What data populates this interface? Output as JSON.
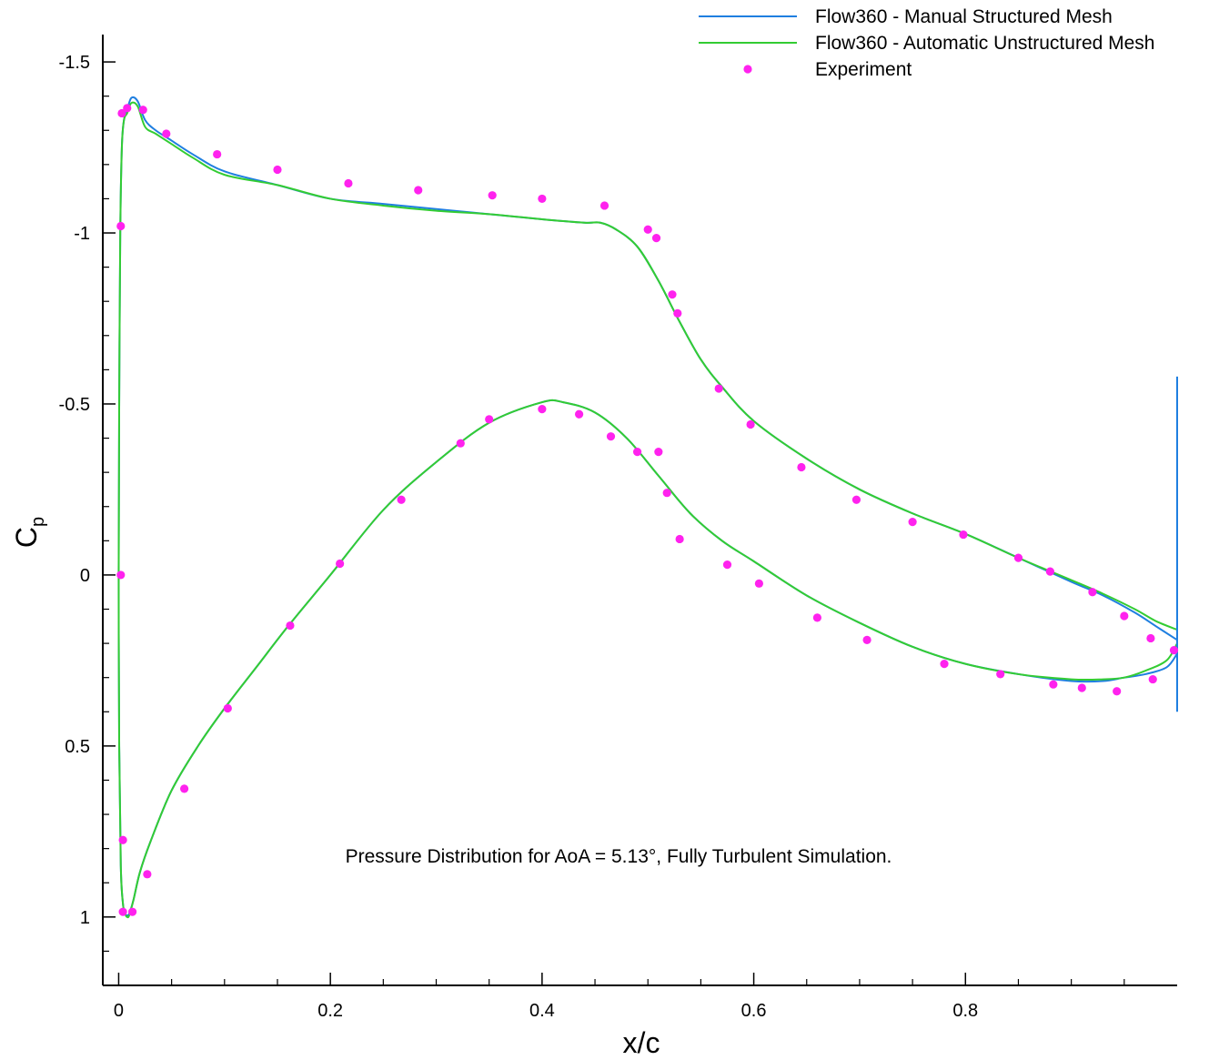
{
  "chart_data": {
    "type": "line",
    "xlabel": "x/c",
    "ylabel": "C",
    "ylabel_subscript": "p",
    "xlim": [
      -0.015,
      1.0
    ],
    "ylim": [
      -1.58,
      1.2
    ],
    "y_inverted": true,
    "grid": false,
    "legend_position": "top-right",
    "x_ticks": [
      {
        "value": 0,
        "label": "0"
      },
      {
        "value": 0.2,
        "label": "0.2"
      },
      {
        "value": 0.4,
        "label": "0.4"
      },
      {
        "value": 0.6,
        "label": "0.6"
      },
      {
        "value": 0.8,
        "label": "0.8"
      }
    ],
    "y_ticks": [
      {
        "value": -1.5,
        "label": "-1.5"
      },
      {
        "value": -1,
        "label": "-1"
      },
      {
        "value": -0.5,
        "label": "-0.5"
      },
      {
        "value": 0,
        "label": "0"
      },
      {
        "value": 0.5,
        "label": "0.5"
      },
      {
        "value": 1,
        "label": "1"
      }
    ],
    "annotation": "Pressure Distribution for AoA = 5.13°, Fully Turbulent Simulation.",
    "series": [
      {
        "name": "Flow360 - Manual Structured Mesh",
        "color": "#1f7fe0",
        "style": "line",
        "x": [
          1.0,
          0.98,
          0.96,
          0.93,
          0.9,
          0.85,
          0.8,
          0.75,
          0.7,
          0.65,
          0.6,
          0.57,
          0.55,
          0.53,
          0.51,
          0.49,
          0.47,
          0.455,
          0.44,
          0.4,
          0.35,
          0.3,
          0.25,
          0.2,
          0.15,
          0.1,
          0.07,
          0.05,
          0.035,
          0.025,
          0.018,
          0.012,
          0.008,
          0.005,
          0.003,
          0.0015,
          0.0005,
          0.0,
          0.0005,
          0.002,
          0.004,
          0.006,
          0.008,
          0.01,
          0.014,
          0.02,
          0.03,
          0.05,
          0.075,
          0.1,
          0.13,
          0.16,
          0.2,
          0.25,
          0.3,
          0.35,
          0.4,
          0.42,
          0.45,
          0.48,
          0.51,
          0.54,
          0.57,
          0.6,
          0.65,
          0.7,
          0.75,
          0.8,
          0.85,
          0.9,
          0.93,
          0.95,
          0.97,
          0.99,
          1.0
        ],
        "y": [
          0.19,
          0.15,
          0.11,
          0.06,
          0.02,
          -0.05,
          -0.12,
          -0.18,
          -0.25,
          -0.34,
          -0.45,
          -0.55,
          -0.63,
          -0.74,
          -0.86,
          -0.96,
          -1.01,
          -1.03,
          -1.03,
          -1.04,
          -1.055,
          -1.07,
          -1.085,
          -1.1,
          -1.14,
          -1.18,
          -1.23,
          -1.27,
          -1.3,
          -1.33,
          -1.385,
          -1.395,
          -1.36,
          -1.33,
          -1.25,
          -1.0,
          -0.5,
          0.0,
          0.5,
          0.85,
          0.96,
          0.99,
          0.995,
          0.99,
          0.95,
          0.87,
          0.78,
          0.63,
          0.5,
          0.39,
          0.27,
          0.15,
          0.0,
          -0.19,
          -0.33,
          -0.445,
          -0.505,
          -0.505,
          -0.475,
          -0.4,
          -0.29,
          -0.18,
          -0.1,
          -0.04,
          0.06,
          0.14,
          0.21,
          0.26,
          0.29,
          0.31,
          0.31,
          0.3,
          0.29,
          0.27,
          0.23
        ]
      },
      {
        "name": "Flow360 - Automatic Unstructured Mesh",
        "color": "#33cc33",
        "style": "line",
        "x": [
          1.0,
          0.98,
          0.96,
          0.93,
          0.9,
          0.85,
          0.8,
          0.75,
          0.7,
          0.65,
          0.6,
          0.57,
          0.55,
          0.53,
          0.51,
          0.49,
          0.47,
          0.455,
          0.44,
          0.4,
          0.35,
          0.3,
          0.25,
          0.2,
          0.15,
          0.1,
          0.07,
          0.05,
          0.035,
          0.025,
          0.018,
          0.012,
          0.008,
          0.005,
          0.003,
          0.0015,
          0.0005,
          0.0,
          0.0005,
          0.002,
          0.004,
          0.006,
          0.008,
          0.01,
          0.014,
          0.02,
          0.03,
          0.05,
          0.075,
          0.1,
          0.13,
          0.16,
          0.2,
          0.25,
          0.3,
          0.35,
          0.4,
          0.42,
          0.45,
          0.48,
          0.51,
          0.54,
          0.57,
          0.6,
          0.65,
          0.7,
          0.75,
          0.8,
          0.85,
          0.9,
          0.93,
          0.95,
          0.97,
          0.99,
          1.0
        ],
        "y": [
          0.16,
          0.135,
          0.1,
          0.055,
          0.015,
          -0.05,
          -0.12,
          -0.18,
          -0.25,
          -0.34,
          -0.45,
          -0.55,
          -0.63,
          -0.74,
          -0.86,
          -0.96,
          -1.01,
          -1.03,
          -1.03,
          -1.04,
          -1.055,
          -1.065,
          -1.08,
          -1.1,
          -1.14,
          -1.17,
          -1.22,
          -1.26,
          -1.29,
          -1.31,
          -1.37,
          -1.38,
          -1.35,
          -1.33,
          -1.25,
          -1.0,
          -0.5,
          0.0,
          0.5,
          0.85,
          0.96,
          0.99,
          1.0,
          0.995,
          0.95,
          0.87,
          0.78,
          0.63,
          0.5,
          0.39,
          0.27,
          0.15,
          0.0,
          -0.19,
          -0.33,
          -0.445,
          -0.505,
          -0.505,
          -0.475,
          -0.4,
          -0.29,
          -0.18,
          -0.1,
          -0.04,
          0.06,
          0.14,
          0.21,
          0.26,
          0.29,
          0.305,
          0.305,
          0.3,
          0.28,
          0.25,
          0.2
        ]
      },
      {
        "name": "Experiment",
        "color": "#ff22ee",
        "style": "marker",
        "x": [
          0.003,
          0.008,
          0.023,
          0.045,
          0.093,
          0.15,
          0.217,
          0.283,
          0.353,
          0.4,
          0.459,
          0.5,
          0.508,
          0.523,
          0.528,
          0.567,
          0.597,
          0.645,
          0.697,
          0.75,
          0.798,
          0.85,
          0.88,
          0.92,
          0.95,
          0.975,
          0.997,
          0.002,
          0.002,
          0.004,
          0.004,
          0.013,
          0.027,
          0.062,
          0.103,
          0.162,
          0.209,
          0.267,
          0.323,
          0.35,
          0.4,
          0.435,
          0.465,
          0.49,
          0.51,
          0.518,
          0.53,
          0.575,
          0.605,
          0.66,
          0.707,
          0.78,
          0.833,
          0.883,
          0.91,
          0.943,
          0.977
        ],
        "y": [
          -1.35,
          -1.365,
          -1.36,
          -1.29,
          -1.23,
          -1.185,
          -1.145,
          -1.125,
          -1.11,
          -1.1,
          -1.08,
          -1.01,
          -0.985,
          -0.82,
          -0.765,
          -0.545,
          -0.44,
          -0.315,
          -0.22,
          -0.155,
          -0.118,
          -0.05,
          -0.01,
          0.05,
          0.12,
          0.185,
          0.22,
          -1.02,
          0.0,
          0.775,
          0.985,
          0.985,
          0.875,
          0.625,
          0.39,
          0.148,
          -0.033,
          -0.22,
          -0.385,
          -0.455,
          -0.485,
          -0.47,
          -0.405,
          -0.36,
          -0.36,
          -0.24,
          -0.105,
          -0.03,
          0.025,
          0.125,
          0.19,
          0.26,
          0.29,
          0.32,
          0.33,
          0.34,
          0.305
        ]
      }
    ]
  }
}
